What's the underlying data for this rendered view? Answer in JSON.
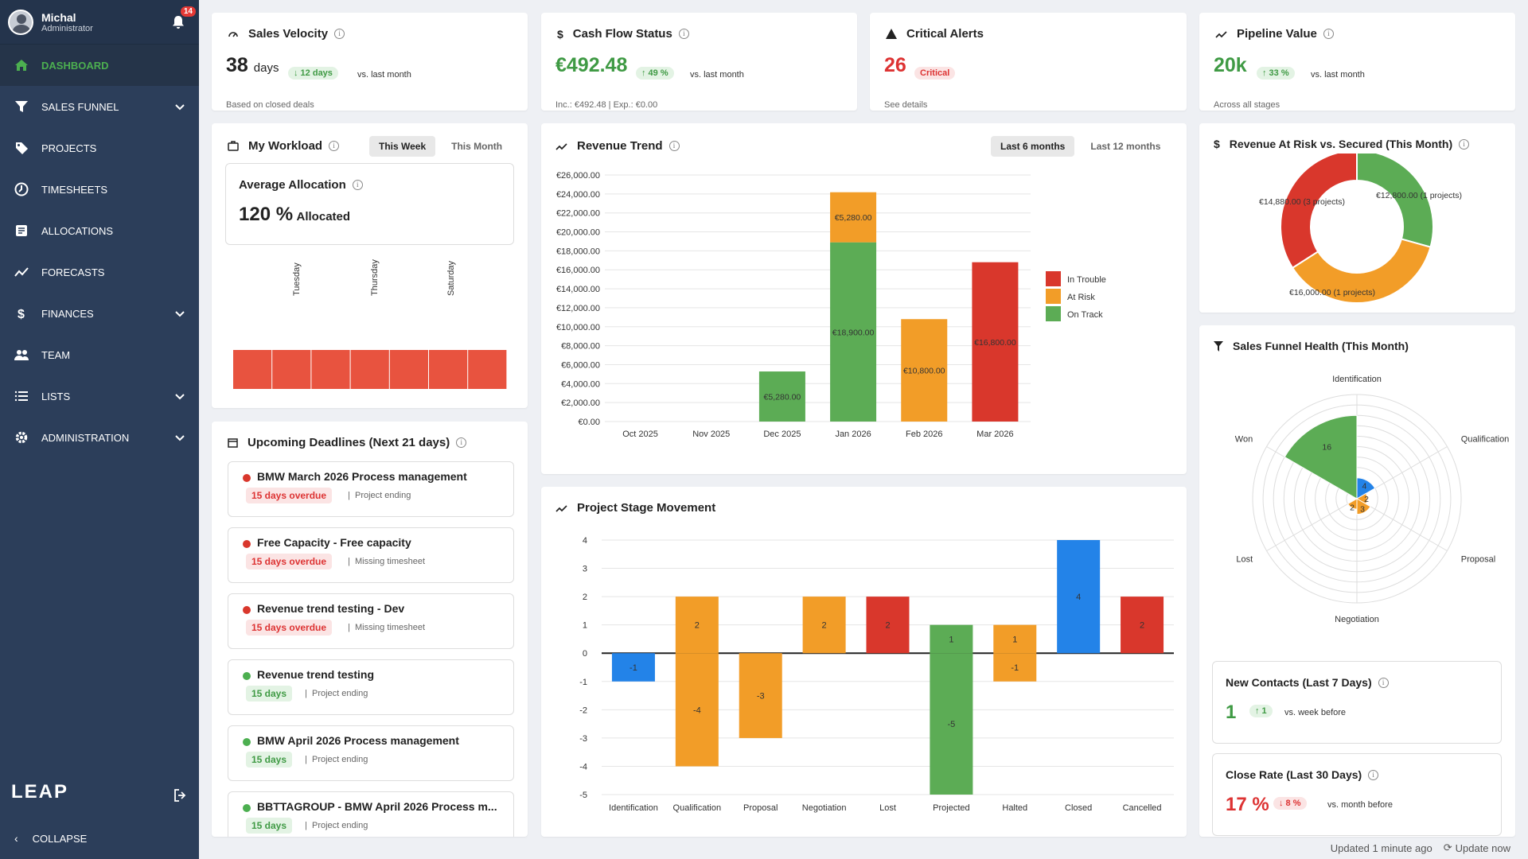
{
  "user": {
    "name": "Michal",
    "role": "Administrator",
    "notifications": "14"
  },
  "nav": [
    {
      "label": "DASHBOARD",
      "icon": "home-icon",
      "active": true,
      "chevron": false
    },
    {
      "label": "SALES FUNNEL",
      "icon": "funnel-icon",
      "chevron": true
    },
    {
      "label": "PROJECTS",
      "icon": "tag-icon",
      "chevron": false
    },
    {
      "label": "TIMESHEETS",
      "icon": "clock-icon",
      "chevron": false
    },
    {
      "label": "ALLOCATIONS",
      "icon": "allocation-icon",
      "chevron": false
    },
    {
      "label": "FORECASTS",
      "icon": "trend-icon",
      "chevron": false
    },
    {
      "label": "FINANCES",
      "icon": "dollar-icon",
      "chevron": true
    },
    {
      "label": "TEAM",
      "icon": "team-icon",
      "chevron": false
    },
    {
      "label": "LISTS",
      "icon": "list-icon",
      "chevron": true
    },
    {
      "label": "ADMINISTRATION",
      "icon": "gear-icon",
      "chevron": true
    }
  ],
  "sidebar": {
    "logo": "LEAP",
    "collapse": "COLLAPSE"
  },
  "kpis": {
    "sales_velocity": {
      "title": "Sales Velocity",
      "value": "38",
      "unit": "days",
      "delta": "↓ 12 days",
      "compare": "vs. last month",
      "sub": "Based on closed deals"
    },
    "cash_flow": {
      "title": "Cash Flow Status",
      "value": "€492.48",
      "delta": "↑ 49 %",
      "compare": "vs. last month",
      "sub": "Inc.: €492.48 | Exp.: €0.00"
    },
    "critical_alerts": {
      "title": "Critical Alerts",
      "value": "26",
      "badge": "Critical",
      "sub": "See details"
    },
    "pipeline": {
      "title": "Pipeline Value",
      "value": "20k",
      "delta": "↑ 33 %",
      "compare": "vs. last month",
      "sub": "Across all stages"
    }
  },
  "workload": {
    "title": "My Workload",
    "tab_week": "This Week",
    "tab_month": "This Month",
    "avg_title": "Average Allocation",
    "avg_value": "120 %",
    "avg_unit": "Allocated",
    "day_labels": [
      "Tuesday",
      "Thursday",
      "Saturday"
    ],
    "bars": 7,
    "bar_color": "#e8533f"
  },
  "deadlines": {
    "title": "Upcoming Deadlines (Next 21 days)",
    "items": [
      {
        "title": "BMW March 2026 Process management",
        "status": "15 days overdue",
        "type": "Project ending",
        "level": "red"
      },
      {
        "title": "Free Capacity - Free capacity",
        "status": "15 days overdue",
        "type": "Missing timesheet",
        "level": "red"
      },
      {
        "title": "Revenue trend testing - Dev",
        "status": "15 days overdue",
        "type": "Missing timesheet",
        "level": "red"
      },
      {
        "title": "Revenue trend testing",
        "status": "15 days",
        "type": "Project ending",
        "level": "green"
      },
      {
        "title": "BMW April 2026 Process management",
        "status": "15 days",
        "type": "Project ending",
        "level": "green"
      },
      {
        "title": "BBTTAGROUP - BMW April 2026 Process m...",
        "status": "15 days",
        "type": "Project ending",
        "level": "green"
      }
    ]
  },
  "revenue_trend": {
    "title": "Revenue Trend",
    "tab6": "Last 6 months",
    "tab12": "Last 12 months"
  },
  "stage_movement": {
    "title": "Project Stage Movement"
  },
  "risk": {
    "title": "Revenue At Risk vs. Secured (This Month)"
  },
  "funnel": {
    "title": "Sales Funnel Health (This Month)"
  },
  "new_contacts": {
    "title": "New Contacts (Last 7 Days)",
    "value": "1",
    "delta": "↑ 1",
    "compare": "vs. week before"
  },
  "close_rate": {
    "title": "Close Rate (Last 30 Days)",
    "value": "17 %",
    "delta": "↓ 8 %",
    "compare": "vs. month before"
  },
  "footer": {
    "updated": "Updated 1 minute ago",
    "update_now": "Update now"
  },
  "colors": {
    "red": "#d9372c",
    "orange": "#f29d28",
    "green": "#5cac55",
    "blue": "#2383e8"
  },
  "chart_data": [
    {
      "type": "bar",
      "title": "Revenue Trend",
      "stacked": true,
      "categories": [
        "Oct 2025",
        "Nov 2025",
        "Dec 2025",
        "Jan 2026",
        "Feb 2026",
        "Mar 2026"
      ],
      "series": [
        {
          "name": "In Trouble",
          "color": "#d9372c",
          "values": [
            0,
            0,
            0,
            0,
            0,
            16800
          ]
        },
        {
          "name": "At Risk",
          "color": "#f29d28",
          "values": [
            0,
            0,
            0,
            5280,
            10800,
            0
          ]
        },
        {
          "name": "On Track",
          "color": "#5cac55",
          "values": [
            0,
            0,
            5280,
            18900,
            0,
            0
          ]
        }
      ],
      "ylim": [
        0,
        26000
      ],
      "ystep": 2000,
      "ytick_labels": [
        "€0.00",
        "€2,000.00",
        "€4,000.00",
        "€6,000.00",
        "€8,000.00",
        "€10,000.00",
        "€12,000.00",
        "€14,000.00",
        "€16,000.00",
        "€18,000.00",
        "€20,000.00",
        "€22,000.00",
        "€24,000.00",
        "€26,000.00"
      ],
      "bar_labels": [
        {
          "cat": 2,
          "series": "On Track",
          "text": "€5,280.00"
        },
        {
          "cat": 3,
          "series": "On Track",
          "text": "€18,900.00"
        },
        {
          "cat": 3,
          "series": "At Risk",
          "text": "€5,280.00"
        },
        {
          "cat": 4,
          "series": "At Risk",
          "text": "€10,800.00"
        },
        {
          "cat": 5,
          "series": "In Trouble",
          "text": "€16,800.00"
        }
      ],
      "legend": [
        "In Trouble",
        "At Risk",
        "On Track"
      ],
      "legend_position": "right"
    },
    {
      "type": "bar",
      "title": "Project Stage Movement",
      "categories": [
        "Identification",
        "Qualification",
        "Proposal",
        "Negotiation",
        "Lost",
        "Projected",
        "Halted",
        "Closed",
        "Cancelled"
      ],
      "segments": [
        {
          "cat": 0,
          "value": -1,
          "color": "#2383e8"
        },
        {
          "cat": 1,
          "value": 2,
          "color": "#f29d28"
        },
        {
          "cat": 1,
          "value": -4,
          "color": "#f29d28"
        },
        {
          "cat": 2,
          "value": -3,
          "color": "#f29d28"
        },
        {
          "cat": 3,
          "value": 2,
          "color": "#f29d28"
        },
        {
          "cat": 4,
          "value": 2,
          "color": "#d9372c"
        },
        {
          "cat": 5,
          "value": 1,
          "color": "#5cac55"
        },
        {
          "cat": 5,
          "value": -5,
          "color": "#5cac55"
        },
        {
          "cat": 6,
          "value": 1,
          "color": "#f29d28"
        },
        {
          "cat": 6,
          "value": -1,
          "color": "#f29d28"
        },
        {
          "cat": 7,
          "value": 4,
          "color": "#2383e8"
        },
        {
          "cat": 8,
          "value": 2,
          "color": "#d9372c"
        }
      ],
      "ylim": [
        -5,
        4
      ]
    },
    {
      "type": "pie",
      "title": "Revenue At Risk vs. Secured (This Month)",
      "donut": true,
      "slices": [
        {
          "label": "€12,800.00 (1 projects)",
          "value": 12800,
          "color": "#5cac55"
        },
        {
          "label": "€16,000.00 (1 projects)",
          "value": 16000,
          "color": "#f29d28"
        },
        {
          "label": "€14,880.00 (3 projects)",
          "value": 14880,
          "color": "#d9372c"
        }
      ]
    },
    {
      "type": "polar-area",
      "title": "Sales Funnel Health (This Month)",
      "categories": [
        "Won",
        "Identification",
        "Qualification",
        "Proposal",
        "Negotiation",
        "Lost"
      ],
      "values": [
        16,
        4,
        2,
        3,
        2,
        0
      ],
      "colors": [
        "#5cac55",
        "#2383e8",
        "#f29d28",
        "#f29d28",
        "#f29d28",
        "#d9372c"
      ],
      "rmax": 20
    }
  ]
}
